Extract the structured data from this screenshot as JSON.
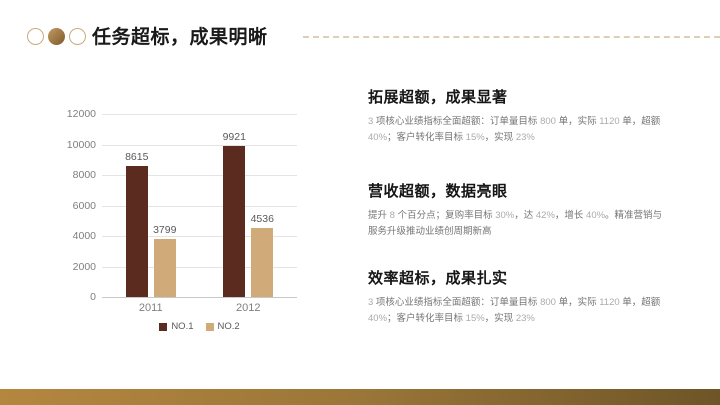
{
  "slide": {
    "title": "任务超标，成果明晰",
    "decor_circles": [
      "outline-circle",
      "filled-circle",
      "outline-circle"
    ],
    "colors": {
      "accent_gold": "#cbaa7e",
      "dashed_line": "#ddcfb4",
      "footer_gradient_left": "#b4873f",
      "footer_gradient_right": "#6e5527",
      "heading_text": "#151515",
      "body_text": "#767676",
      "body_number_text": "#ababab"
    }
  },
  "chart_data": {
    "type": "bar",
    "title": "",
    "xlabel": "",
    "ylabel": "",
    "categories": [
      "2011",
      "2012"
    ],
    "series": [
      {
        "name": "NO.1",
        "color": "#5a2b1e",
        "values": [
          8615,
          9921
        ]
      },
      {
        "name": "NO.2",
        "color": "#d0ab79",
        "values": [
          3799,
          4536
        ]
      }
    ],
    "ylim": [
      0,
      12000
    ],
    "yticks": [
      0,
      2000,
      4000,
      6000,
      8000,
      10000,
      12000
    ],
    "grid": true,
    "data_labels": true,
    "legend_position": "bottom"
  },
  "sections": [
    {
      "heading": "拓展超额，成果显著",
      "body": [
        {
          "text": "3",
          "tone": "light"
        },
        {
          "text": " 项核心业绩指标全面超额：订单量目标 ",
          "tone": "dark"
        },
        {
          "text": "800",
          "tone": "light"
        },
        {
          "text": " 单，实际 ",
          "tone": "dark"
        },
        {
          "text": "1120",
          "tone": "light"
        },
        {
          "text": " 单，超额 ",
          "tone": "dark"
        },
        {
          "text": "40%",
          "tone": "light"
        },
        {
          "text": "；客户转化率目标 ",
          "tone": "dark"
        },
        {
          "text": "15%",
          "tone": "light"
        },
        {
          "text": "，实现 ",
          "tone": "dark"
        },
        {
          "text": "23%",
          "tone": "light"
        }
      ]
    },
    {
      "heading": "营收超额，数据亮眼",
      "body": [
        {
          "text": "提升 ",
          "tone": "dark"
        },
        {
          "text": "8",
          "tone": "light"
        },
        {
          "text": " 个百分点；复购率目标 ",
          "tone": "dark"
        },
        {
          "text": "30%",
          "tone": "light"
        },
        {
          "text": "，达 ",
          "tone": "dark"
        },
        {
          "text": "42%",
          "tone": "light"
        },
        {
          "text": "，增长 ",
          "tone": "dark"
        },
        {
          "text": "40%",
          "tone": "light"
        },
        {
          "text": "。精准营销与服务升级推动业绩创周期新高",
          "tone": "dark"
        }
      ]
    },
    {
      "heading": "效率超标，成果扎实",
      "body": [
        {
          "text": "3",
          "tone": "light"
        },
        {
          "text": " 项核心业绩指标全面超额：订单量目标 ",
          "tone": "dark"
        },
        {
          "text": "800",
          "tone": "light"
        },
        {
          "text": " 单，实际 ",
          "tone": "dark"
        },
        {
          "text": "1120",
          "tone": "light"
        },
        {
          "text": " 单，超额 ",
          "tone": "dark"
        },
        {
          "text": "40%",
          "tone": "light"
        },
        {
          "text": "；客户转化率目标 ",
          "tone": "dark"
        },
        {
          "text": "15%",
          "tone": "light"
        },
        {
          "text": "，实现 ",
          "tone": "dark"
        },
        {
          "text": "23%",
          "tone": "light"
        }
      ]
    }
  ]
}
